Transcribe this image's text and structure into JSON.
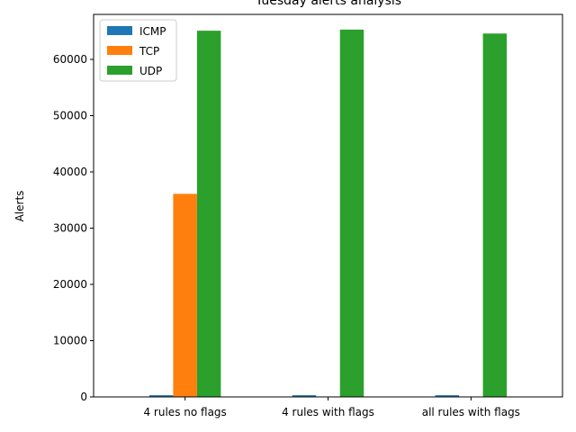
{
  "chart_data": {
    "type": "bar",
    "title": "Tuesday alerts analysis",
    "xlabel": "",
    "ylabel": "Alerts",
    "categories": [
      "4 rules no flags",
      "4 rules with flags",
      "all rules with flags"
    ],
    "series": [
      {
        "name": "ICMP",
        "color": "#1f77b4",
        "values": [
          300,
          300,
          300
        ]
      },
      {
        "name": "TCP",
        "color": "#ff7f0e",
        "values": [
          36100,
          0,
          0
        ]
      },
      {
        "name": "UDP",
        "color": "#2ca02c",
        "values": [
          65100,
          65300,
          64600
        ]
      }
    ],
    "ylim": [
      0,
      68000
    ],
    "yticks": [
      0,
      10000,
      20000,
      30000,
      40000,
      50000,
      60000
    ],
    "ytick_labels": [
      "0",
      "10000",
      "20000",
      "30000",
      "40000",
      "50000",
      "60000"
    ],
    "grid": false,
    "legend_position": "top-left"
  }
}
